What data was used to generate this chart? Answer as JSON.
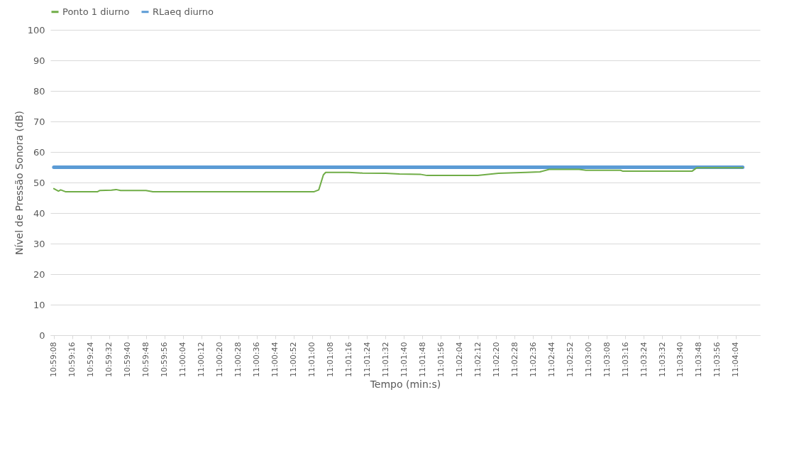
{
  "chart_data": {
    "type": "line",
    "xlabel": "Tempo (min:s)",
    "ylabel": "Nível de Pressão Sonora (dB)",
    "xlim": [
      10.985139,
      11.070694
    ],
    "xticks": [
      {
        "value": 10.985556,
        "label": "10:59:08"
      },
      {
        "value": 10.987778,
        "label": "10:59:16"
      },
      {
        "value": 10.99,
        "label": "10:59:24"
      },
      {
        "value": 10.992222,
        "label": "10:59:32"
      },
      {
        "value": 10.994444,
        "label": "10:59:40"
      },
      {
        "value": 10.996667,
        "label": "10:59:48"
      },
      {
        "value": 10.998889,
        "label": "10:59:56"
      },
      {
        "value": 11.001111,
        "label": "11:00:04"
      },
      {
        "value": 11.003333,
        "label": "11:00:12"
      },
      {
        "value": 11.005556,
        "label": "11:00:20"
      },
      {
        "value": 11.007778,
        "label": "11:00:28"
      },
      {
        "value": 11.01,
        "label": "11:00:36"
      },
      {
        "value": 11.012222,
        "label": "11:00:44"
      },
      {
        "value": 11.014444,
        "label": "11:00:52"
      },
      {
        "value": 11.016667,
        "label": "11:01:00"
      },
      {
        "value": 11.018889,
        "label": "11:01:08"
      },
      {
        "value": 11.021111,
        "label": "11:01:16"
      },
      {
        "value": 11.023333,
        "label": "11:01:24"
      },
      {
        "value": 11.025556,
        "label": "11:01:32"
      },
      {
        "value": 11.027778,
        "label": "11:01:40"
      },
      {
        "value": 11.03,
        "label": "11:01:48"
      },
      {
        "value": 11.032222,
        "label": "11:01:56"
      },
      {
        "value": 11.034444,
        "label": "11:02:04"
      },
      {
        "value": 11.036667,
        "label": "11:02:12"
      },
      {
        "value": 11.038889,
        "label": "11:02:20"
      },
      {
        "value": 11.041111,
        "label": "11:02:28"
      },
      {
        "value": 11.043333,
        "label": "11:02:36"
      },
      {
        "value": 11.045556,
        "label": "11:02:44"
      },
      {
        "value": 11.047778,
        "label": "11:02:52"
      },
      {
        "value": 11.05,
        "label": "11:03:00"
      },
      {
        "value": 11.052222,
        "label": "11:03:08"
      },
      {
        "value": 11.054444,
        "label": "11:03:16"
      },
      {
        "value": 11.056667,
        "label": "11:03:24"
      },
      {
        "value": 11.058889,
        "label": "11:03:32"
      },
      {
        "value": 11.061111,
        "label": "11:03:40"
      },
      {
        "value": 11.063333,
        "label": "11:03:48"
      },
      {
        "value": 11.065556,
        "label": "11:03:56"
      },
      {
        "value": 11.067778,
        "label": "11:04:04"
      }
    ],
    "ylim": [
      0,
      100
    ],
    "yticks": [
      0,
      10,
      20,
      30,
      40,
      50,
      60,
      70,
      80,
      90,
      100
    ],
    "grid": "y",
    "legend": "top",
    "marker": "none",
    "line_style": "solid",
    "series": [
      {
        "name": "Ponto 1 diurno",
        "color": "#70ad47",
        "x": [
          10.985556,
          10.986111,
          10.986389,
          10.986944,
          10.990833,
          10.991111,
          10.9925,
          10.993056,
          10.993611,
          10.996667,
          10.9975,
          11.016944,
          11.0175,
          11.018056,
          11.018333,
          11.021111,
          11.022778,
          11.025556,
          11.027222,
          11.029722,
          11.030556,
          11.036667,
          11.039167,
          11.0425,
          11.044167,
          11.045278,
          11.048889,
          11.049722,
          11.053889,
          11.054167,
          11.0625,
          11.063056,
          11.068611
        ],
        "values": [
          48.0,
          47.2,
          47.6,
          47.0,
          47.0,
          47.4,
          47.5,
          47.7,
          47.4,
          47.4,
          47.0,
          47.0,
          47.6,
          52.5,
          53.3,
          53.3,
          53.1,
          53.0,
          52.8,
          52.7,
          52.3,
          52.3,
          53.0,
          53.3,
          53.5,
          54.3,
          54.3,
          54.0,
          54.0,
          53.7,
          53.7,
          54.8,
          54.8
        ]
      },
      {
        "name": "RLaeq diurno",
        "color": "#5b9bd5",
        "x": [
          10.985556,
          11.068611
        ],
        "values": [
          55,
          55
        ]
      }
    ]
  }
}
